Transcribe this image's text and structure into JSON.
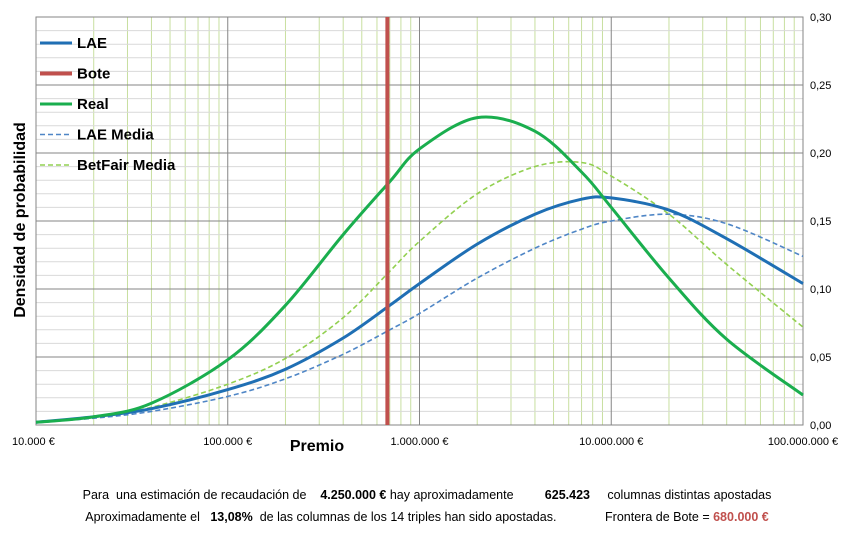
{
  "chart_data": {
    "type": "line",
    "xlabel": "Premio",
    "ylabel": "Densidad de probabilidad",
    "x_scale": "log",
    "xlim": [
      10000,
      100000000
    ],
    "ylim": [
      0,
      0.3
    ],
    "x_ticks": [
      "10.000 €",
      "100.000 €",
      "1.000.000 €",
      "10.000.000 €",
      "100.000.000 €"
    ],
    "y_ticks": [
      "0,00",
      "0,05",
      "0,10",
      "0,15",
      "0,20",
      "0,25",
      "0,30"
    ],
    "grid": true,
    "legend_position": "top-left",
    "series": [
      {
        "name": "LAE",
        "color": "#1f6fb4",
        "style": "solid",
        "x": [
          10000,
          20000,
          40000,
          100000,
          200000,
          400000,
          700000,
          1000000,
          2000000,
          4000000,
          7000000,
          10000000,
          20000000,
          40000000,
          100000000
        ],
        "y": [
          0.002,
          0.006,
          0.012,
          0.026,
          0.041,
          0.064,
          0.088,
          0.104,
          0.133,
          0.155,
          0.166,
          0.167,
          0.158,
          0.137,
          0.104
        ]
      },
      {
        "name": "Bote",
        "color": "#c0504d",
        "style": "vline",
        "x": [
          680000,
          680000
        ],
        "y": [
          0,
          0.3
        ]
      },
      {
        "name": "Real",
        "color": "#1aae4e",
        "style": "solid",
        "x": [
          10000,
          20000,
          40000,
          100000,
          200000,
          400000,
          700000,
          1000000,
          2000000,
          4000000,
          7000000,
          10000000,
          20000000,
          40000000,
          100000000
        ],
        "y": [
          0.002,
          0.006,
          0.016,
          0.048,
          0.088,
          0.14,
          0.179,
          0.203,
          0.226,
          0.216,
          0.186,
          0.16,
          0.108,
          0.063,
          0.022
        ]
      },
      {
        "name": "LAE Media",
        "color": "#4f86c6",
        "style": "dashed",
        "x": [
          10000,
          20000,
          40000,
          100000,
          200000,
          400000,
          700000,
          1000000,
          2000000,
          4000000,
          7000000,
          10000000,
          20000000,
          40000000,
          100000000
        ],
        "y": [
          0.002,
          0.005,
          0.01,
          0.021,
          0.034,
          0.052,
          0.07,
          0.082,
          0.108,
          0.13,
          0.144,
          0.15,
          0.155,
          0.148,
          0.124
        ]
      },
      {
        "name": "BetFair Media",
        "color": "#92d050",
        "style": "dashed",
        "x": [
          10000,
          20000,
          40000,
          100000,
          200000,
          400000,
          700000,
          1000000,
          2000000,
          4000000,
          7000000,
          10000000,
          20000000,
          40000000,
          100000000
        ],
        "y": [
          0.002,
          0.006,
          0.013,
          0.03,
          0.049,
          0.079,
          0.113,
          0.135,
          0.17,
          0.19,
          0.193,
          0.183,
          0.155,
          0.118,
          0.072
        ]
      }
    ]
  },
  "footer": {
    "line1": {
      "t1": "Para  una estimación de recaudación de",
      "recaudacion": "4.250.000 €",
      "t2": "hay aproximadamente",
      "columnas": "625.423",
      "t3": "columnas distintas apostadas"
    },
    "line2": {
      "t1": "Aproximadamente el",
      "porcentaje": "13,08%",
      "t2": "de las columnas de los 14 triples han sido apostadas.",
      "t3": "Frontera de Bote =",
      "frontera": "680.000 €"
    }
  }
}
